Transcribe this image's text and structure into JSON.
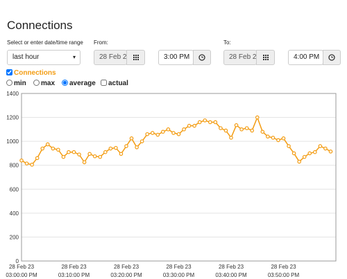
{
  "header": {
    "title": "Connections"
  },
  "form": {
    "range_label": "Select or enter date/time range",
    "range_value": "last hour",
    "from_label": "From:",
    "from_date": "28 Feb 2",
    "from_time": "3:00 PM",
    "to_label": "To:",
    "to_date": "28 Feb 2",
    "to_time": "4:00 PM"
  },
  "options": {
    "series_toggle": "Connections",
    "min": "min",
    "max": "max",
    "average": "average",
    "actual": "actual",
    "selected": "average"
  },
  "chart_data": {
    "type": "line",
    "categories": [
      "28 Feb 23 03:00:00 PM",
      null,
      null,
      null,
      null,
      null,
      null,
      null,
      null,
      null,
      "28 Feb 23 03:10:00 PM",
      null,
      null,
      null,
      null,
      null,
      null,
      null,
      null,
      null,
      "28 Feb 23 03:20:00 PM",
      null,
      null,
      null,
      null,
      null,
      null,
      null,
      null,
      null,
      "28 Feb 23 03:30:00 PM",
      null,
      null,
      null,
      null,
      null,
      null,
      null,
      null,
      null,
      "28 Feb 23 03:40:00 PM",
      null,
      null,
      null,
      null,
      null,
      null,
      null,
      null,
      null,
      "28 Feb 23 03:50:00 PM",
      null,
      null,
      null,
      null,
      null,
      null,
      null,
      null,
      null
    ],
    "series": [
      {
        "name": "Connections",
        "color": "#f39c12",
        "values": [
          840,
          815,
          805,
          860,
          940,
          975,
          940,
          930,
          870,
          910,
          910,
          890,
          825,
          895,
          875,
          870,
          910,
          940,
          945,
          895,
          960,
          1025,
          950,
          1000,
          1060,
          1070,
          1055,
          1080,
          1100,
          1070,
          1060,
          1100,
          1130,
          1130,
          1160,
          1175,
          1160,
          1160,
          1110,
          1090,
          1030,
          1135,
          1100,
          1110,
          1090,
          1200,
          1080,
          1040,
          1030,
          1010,
          1025,
          960,
          900,
          830,
          870,
          900,
          910,
          960,
          940,
          915
        ]
      }
    ],
    "ylim": [
      0,
      1400
    ],
    "yticks": [
      0,
      200,
      400,
      600,
      800,
      1000,
      1200,
      1400
    ],
    "grid": true
  }
}
